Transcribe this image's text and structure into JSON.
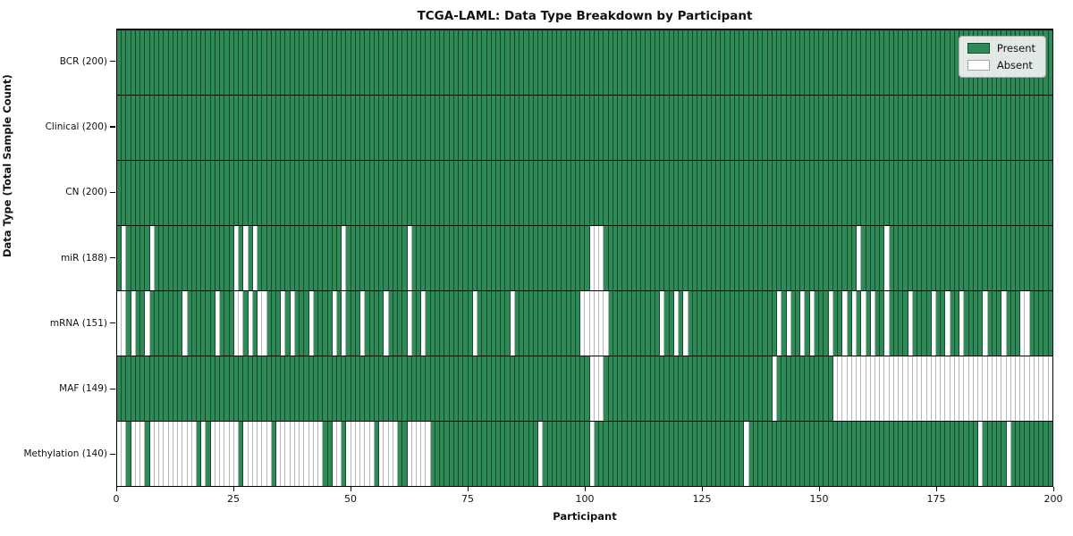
{
  "title": "TCGA-LAML: Data Type Breakdown by Participant",
  "xlabel": "Participant",
  "ylabel": "Data Type (Total Sample Count)",
  "legend": {
    "position": "upper right",
    "present_label": "Present",
    "absent_label": "Absent"
  },
  "colors": {
    "present": "#2E8B57",
    "absent": "#FFFFFF",
    "row_separator": "#000000",
    "plot_border": "#000000",
    "legend_background": "#F2F2F2"
  },
  "chart_data": {
    "type": "heatmap",
    "title": "TCGA-LAML: Data Type Breakdown by Participant",
    "xlabel": "Participant",
    "ylabel": "Data Type (Total Sample Count)",
    "x_range": [
      0,
      200
    ],
    "x_ticks": [
      0,
      25,
      50,
      75,
      100,
      125,
      150,
      175,
      200
    ],
    "n_participants": 200,
    "cell_states": [
      "Present",
      "Absent"
    ],
    "rows": [
      {
        "label": "BCR (200)",
        "data_type": "BCR",
        "total_samples": 200,
        "absent_participants": []
      },
      {
        "label": "Clinical (200)",
        "data_type": "Clinical",
        "total_samples": 200,
        "absent_participants": []
      },
      {
        "label": "CN (200)",
        "data_type": "CN",
        "total_samples": 200,
        "absent_participants": []
      },
      {
        "label": "miR (188)",
        "data_type": "miR",
        "total_samples": 188,
        "absent_participants": [
          1,
          7,
          25,
          27,
          29,
          48,
          62,
          101,
          102,
          103,
          158,
          164
        ]
      },
      {
        "label": "mRNA (151)",
        "data_type": "mRNA",
        "total_samples": 151,
        "absent_participants": [
          0,
          1,
          3,
          6,
          14,
          21,
          25,
          26,
          28,
          30,
          31,
          35,
          37,
          41,
          46,
          48,
          52,
          57,
          62,
          65,
          76,
          84,
          99,
          100,
          101,
          102,
          103,
          104,
          116,
          119,
          121,
          141,
          143,
          146,
          148,
          152,
          155,
          157,
          159,
          161,
          164,
          169,
          174,
          177,
          180,
          185,
          189,
          193,
          194
        ]
      },
      {
        "label": "MAF (149)",
        "data_type": "MAF",
        "total_samples": 149,
        "absent_participants": [
          101,
          102,
          103,
          140,
          153,
          154,
          155,
          156,
          157,
          158,
          159,
          160,
          161,
          162,
          163,
          164,
          165,
          166,
          167,
          168,
          169,
          170,
          171,
          172,
          173,
          174,
          175,
          176,
          177,
          178,
          179,
          180,
          181,
          182,
          183,
          184,
          185,
          186,
          187,
          188,
          189,
          190,
          191,
          192,
          193,
          194,
          195,
          196,
          197,
          198,
          199
        ]
      },
      {
        "label": "Methylation (140)",
        "data_type": "Methylation",
        "total_samples": 140,
        "absent_participants": [
          0,
          1,
          3,
          4,
          5,
          7,
          8,
          9,
          10,
          11,
          12,
          13,
          14,
          15,
          16,
          18,
          20,
          21,
          22,
          23,
          24,
          25,
          27,
          28,
          29,
          30,
          31,
          32,
          34,
          35,
          36,
          37,
          38,
          39,
          40,
          41,
          42,
          43,
          46,
          47,
          49,
          50,
          51,
          52,
          53,
          54,
          56,
          57,
          58,
          59,
          62,
          63,
          64,
          65,
          66,
          90,
          101,
          134,
          184,
          190
        ]
      }
    ]
  }
}
